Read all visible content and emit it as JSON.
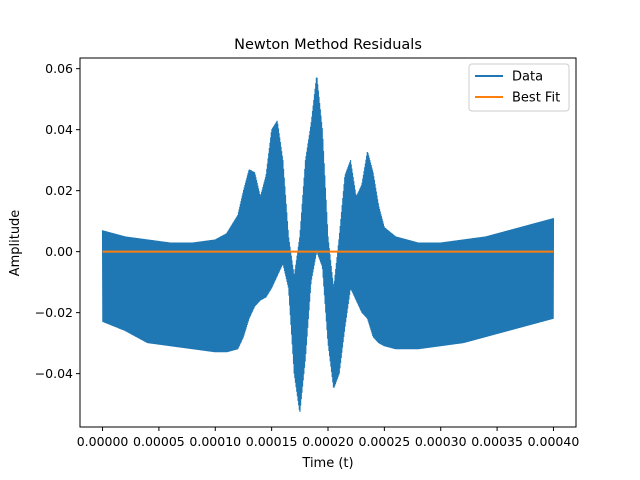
{
  "chart_data": {
    "type": "line",
    "title": "Newton Method Residuals",
    "xlabel": "Time (t)",
    "ylabel": "Amplitude",
    "xlim": [
      -2e-05,
      0.00042
    ],
    "ylim": [
      -0.0575,
      0.0635
    ],
    "x_ticks": [
      0.0,
      5e-05,
      0.0001,
      0.00015,
      0.0002,
      0.00025,
      0.0003,
      0.00035,
      0.0004
    ],
    "x_tick_labels": [
      "0.00000",
      "0.00005",
      "0.00010",
      "0.00015",
      "0.00020",
      "0.00025",
      "0.00030",
      "0.00035",
      "0.00040"
    ],
    "y_ticks": [
      -0.04,
      -0.02,
      0.0,
      0.02,
      0.04,
      0.06
    ],
    "y_tick_labels": [
      "−0.04",
      "−0.02",
      "0.00",
      "0.02",
      "0.04",
      "0.06"
    ],
    "grid": false,
    "legend_position": "top-right",
    "series": [
      {
        "name": "Data",
        "color": "#1f77b4",
        "envelope": {
          "x": [
            0.0,
            2e-05,
            4e-05,
            6e-05,
            8e-05,
            0.0001,
            0.00011,
            0.00012,
            0.000125,
            0.00013,
            0.000135,
            0.00014,
            0.000145,
            0.00015,
            0.000155,
            0.00016,
            0.000165,
            0.00017,
            0.000175,
            0.00018,
            0.000185,
            0.00019,
            0.000195,
            0.0002,
            0.000205,
            0.00021,
            0.000215,
            0.00022,
            0.000225,
            0.00023,
            0.000235,
            0.00024,
            0.000245,
            0.00025,
            0.00026,
            0.00027,
            0.00028,
            0.0003,
            0.00032,
            0.00034,
            0.00036,
            0.00038,
            0.0004
          ],
          "upper": [
            0.007,
            0.005,
            0.004,
            0.003,
            0.003,
            0.004,
            0.006,
            0.012,
            0.02,
            0.027,
            0.026,
            0.018,
            0.025,
            0.04,
            0.043,
            0.03,
            0.005,
            -0.008,
            0.005,
            0.03,
            0.042,
            0.058,
            0.04,
            0.005,
            -0.012,
            0.005,
            0.025,
            0.03,
            0.018,
            0.022,
            0.033,
            0.026,
            0.015,
            0.008,
            0.005,
            0.004,
            0.003,
            0.003,
            0.004,
            0.005,
            0.007,
            0.009,
            0.011
          ],
          "lower": [
            -0.023,
            -0.026,
            -0.03,
            -0.031,
            -0.032,
            -0.033,
            -0.033,
            -0.032,
            -0.028,
            -0.022,
            -0.018,
            -0.016,
            -0.015,
            -0.012,
            -0.008,
            -0.004,
            -0.012,
            -0.04,
            -0.053,
            -0.035,
            -0.01,
            0.0,
            -0.005,
            -0.03,
            -0.045,
            -0.04,
            -0.025,
            -0.012,
            -0.016,
            -0.02,
            -0.022,
            -0.028,
            -0.03,
            -0.031,
            -0.032,
            -0.032,
            -0.032,
            -0.031,
            -0.03,
            -0.028,
            -0.026,
            -0.024,
            -0.022
          ]
        }
      },
      {
        "name": "Best Fit",
        "color": "#ff7f0e",
        "x": [
          0.0,
          0.0004
        ],
        "values": [
          0.0,
          0.0
        ]
      }
    ]
  }
}
